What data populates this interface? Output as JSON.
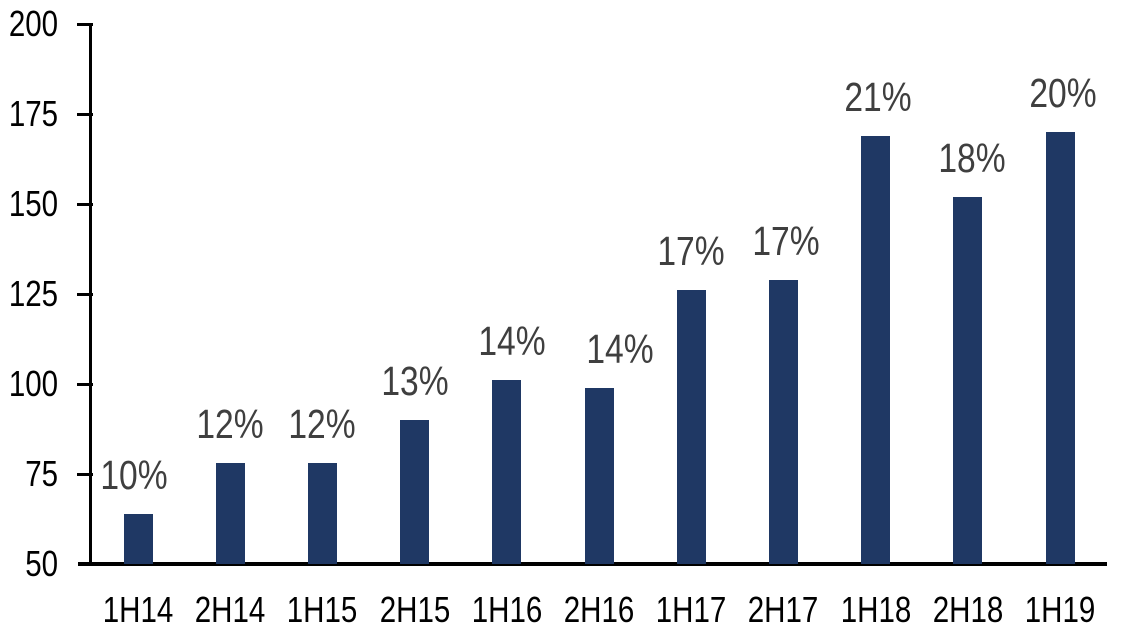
{
  "chart_data": {
    "type": "bar",
    "categories": [
      "1H14",
      "2H14",
      "1H15",
      "2H15",
      "1H16",
      "2H16",
      "1H17",
      "2H17",
      "1H18",
      "2H18",
      "1H19"
    ],
    "values": [
      64,
      78,
      78,
      90,
      101,
      99,
      126,
      129,
      169,
      152,
      170
    ],
    "bar_labels": [
      "10%",
      "12%",
      "12%",
      "13%",
      "14%",
      "14%",
      "17%",
      "17%",
      "21%",
      "18%",
      "20%"
    ],
    "title": "",
    "xlabel": "",
    "ylabel": "",
    "ylim": [
      50,
      200
    ],
    "yticks": [
      50,
      75,
      100,
      125,
      150,
      175,
      200
    ],
    "grid": false,
    "legend": null,
    "label_dx": [
      -4,
      0,
      0,
      0,
      5,
      21,
      0,
      3,
      2,
      4,
      3
    ]
  },
  "colors": {
    "bar": "#1F3864",
    "bar_label": "#3F3F3F",
    "axis": "#000000",
    "tick_label": "#000000",
    "background": "#FFFFFF"
  }
}
